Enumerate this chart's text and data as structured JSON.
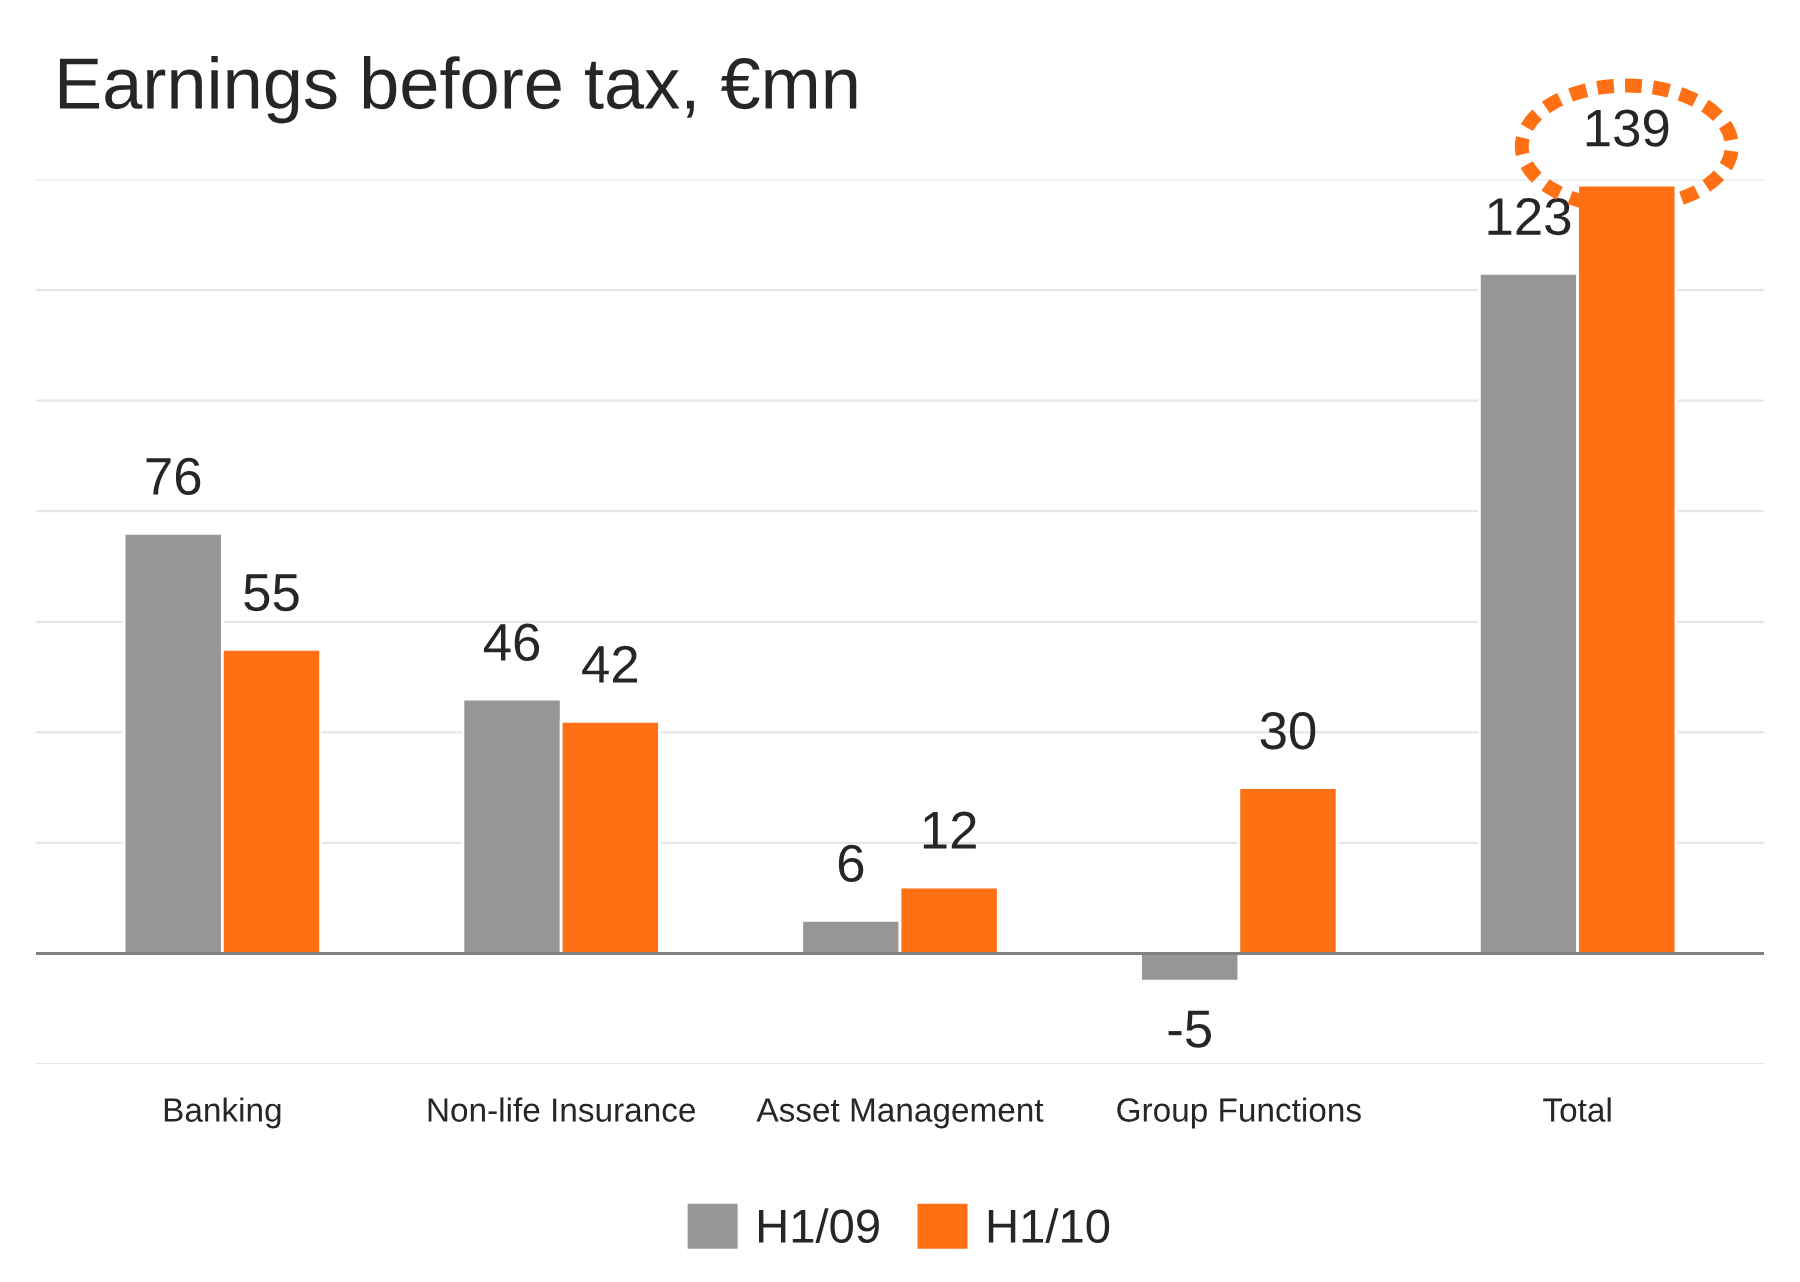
{
  "chart_data": {
    "type": "bar",
    "title": "Earnings before tax, €mn",
    "categories": [
      "Banking",
      "Non-life Insurance",
      "Asset Management",
      "Group Functions",
      "Total"
    ],
    "series": [
      {
        "name": "H1/09",
        "color": "#969696",
        "values": [
          76,
          46,
          6,
          -5,
          123
        ]
      },
      {
        "name": "H1/10",
        "color": "#ff6f14",
        "values": [
          55,
          42,
          12,
          30,
          139
        ]
      }
    ],
    "ylim": [
      -20,
      140
    ],
    "yticks": [
      {
        "value": -20,
        "label": null
      },
      {
        "value": 0,
        "label": null
      },
      {
        "value": 20,
        "label": null
      },
      {
        "value": 40,
        "label": null
      },
      {
        "value": 60,
        "label": null
      },
      {
        "value": 80,
        "label": null
      },
      {
        "value": 100,
        "label": null
      },
      {
        "value": 120,
        "label": null
      },
      {
        "value": 140,
        "label": null
      }
    ],
    "tick_labels": "x",
    "grid": "y",
    "data_labels": true,
    "legend": "bottom"
  }
}
